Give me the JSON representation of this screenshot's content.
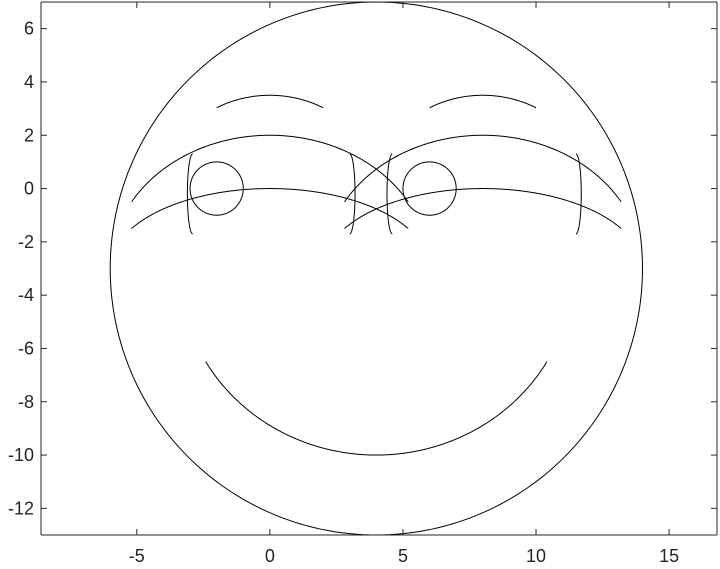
{
  "chart_data": {
    "type": "line",
    "title": "",
    "xlabel": "",
    "ylabel": "",
    "xlim": [
      -8.6,
      16.8
    ],
    "ylim": [
      -13,
      7
    ],
    "x_ticks": [
      -5,
      0,
      5,
      10,
      15
    ],
    "x_tick_labels": [
      "-5",
      "0",
      "5",
      "10",
      "15"
    ],
    "y_ticks": [
      6,
      4,
      2,
      0,
      -2,
      -4,
      -6,
      -8,
      -10,
      -12
    ],
    "y_tick_labels": [
      "6",
      "4",
      "2",
      "0",
      "-2",
      "-4",
      "-6",
      "-8",
      "-10",
      "-12"
    ],
    "grid": false,
    "box": true,
    "line_color": "#000000",
    "series": [
      {
        "kind": "ellipse",
        "cx": 4,
        "cy": -3,
        "rx": 10,
        "ry": 10,
        "t0": 0,
        "t1": 360
      },
      {
        "kind": "ellipse",
        "cx": -2,
        "cy": 0,
        "rx": 1,
        "ry": 1,
        "t0": 0,
        "t1": 360
      },
      {
        "kind": "ellipse",
        "cx": 6,
        "cy": 0,
        "rx": 1,
        "ry": 1,
        "t0": 0,
        "t1": 360
      },
      {
        "kind": "ellipse",
        "cx": 0,
        "cy": -3,
        "rx": 6,
        "ry": 3,
        "t0": 30,
        "t1": 150
      },
      {
        "kind": "ellipse",
        "cx": 8,
        "cy": -3,
        "rx": 6,
        "ry": 3,
        "t0": 30,
        "t1": 150
      },
      {
        "kind": "ellipse",
        "cx": 0,
        "cy": -3,
        "rx": 6,
        "ry": 5,
        "t0": 30,
        "t1": 150
      },
      {
        "kind": "ellipse",
        "cx": 8,
        "cy": -3,
        "rx": 6,
        "ry": 5,
        "t0": 30,
        "t1": 150
      },
      {
        "kind": "ellipse",
        "cx": -2.9,
        "cy": -0.2,
        "rx": 0.2,
        "ry": 1.5,
        "t0": 90,
        "t1": 270
      },
      {
        "kind": "ellipse",
        "cx": 11.5,
        "cy": -0.2,
        "rx": 0.2,
        "ry": 1.5,
        "t0": -90,
        "t1": 90
      },
      {
        "kind": "ellipse",
        "cx": 3.0,
        "cy": -0.2,
        "rx": 0.2,
        "ry": 1.5,
        "t0": -90,
        "t1": 90
      },
      {
        "kind": "ellipse",
        "cx": 4.6,
        "cy": -0.2,
        "rx": 0.2,
        "ry": 1.5,
        "t0": 90,
        "t1": 270
      },
      {
        "kind": "ellipse",
        "cx": 0,
        "cy": 0,
        "rx": 4,
        "ry": 3.5,
        "t0": 60,
        "t1": 120
      },
      {
        "kind": "ellipse",
        "cx": 8,
        "cy": 0,
        "rx": 4,
        "ry": 3.5,
        "t0": 60,
        "t1": 120
      },
      {
        "kind": "ellipse",
        "cx": 4,
        "cy": -3,
        "rx": 7.4,
        "ry": 7,
        "t0": 210,
        "t1": 330
      }
    ]
  }
}
